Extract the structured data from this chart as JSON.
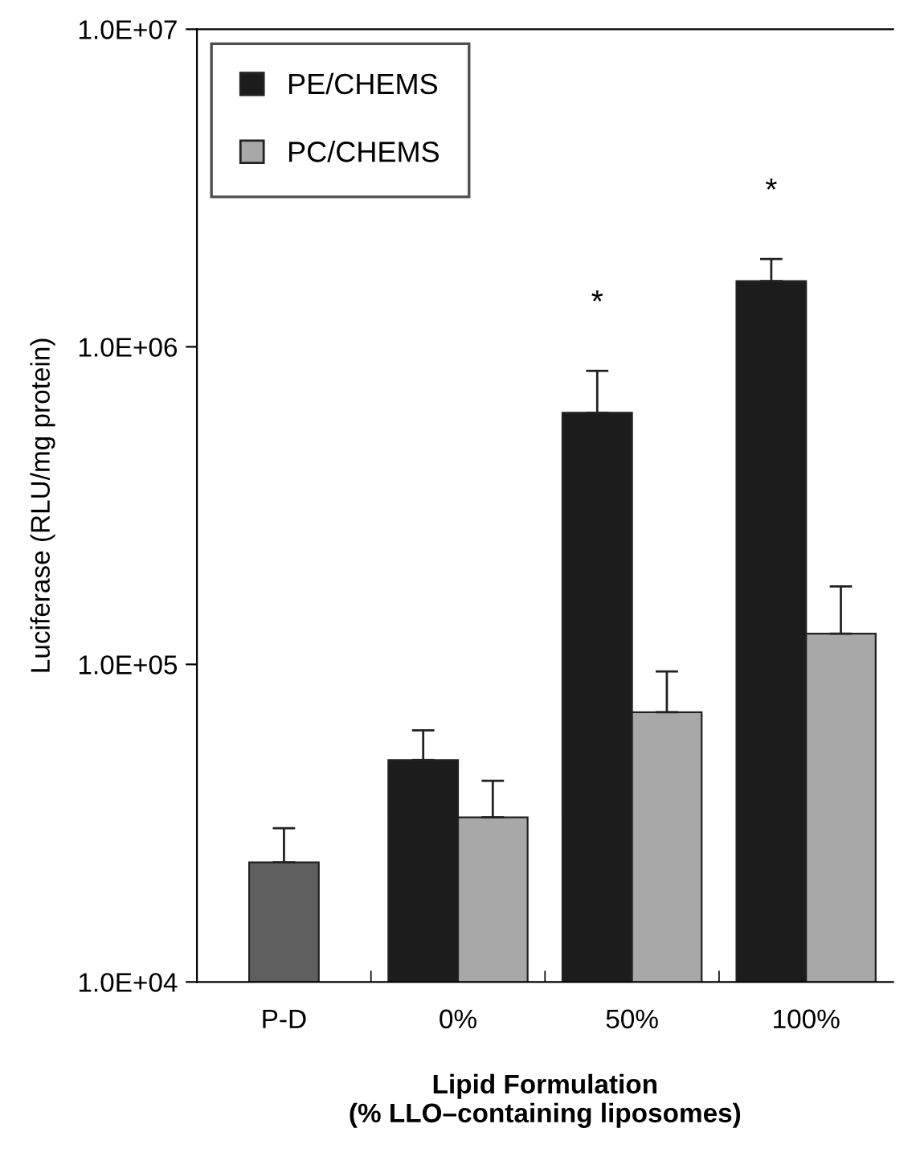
{
  "chart_data": {
    "type": "bar",
    "xlabel": "Lipid Formulation\n(% LLO–containing liposomes)",
    "ylabel": "Luciferase (RLU/mg protein)",
    "categories": [
      "P-D",
      "0%",
      "50%",
      "100%"
    ],
    "series": [
      {
        "name": "PE/CHEMS",
        "color": "#1c1c1c",
        "values": [
          null,
          50000,
          620000,
          1610000
        ],
        "errors": [
          null,
          [
            50000,
            62000
          ],
          [
            620000,
            840000
          ],
          [
            1610000,
            1890000
          ]
        ]
      },
      {
        "name": "PC/CHEMS",
        "color": "#a8a8a8",
        "values": [
          null,
          33000,
          70700,
          125000
        ],
        "errors": [
          null,
          [
            33000,
            43000
          ],
          [
            70700,
            95000
          ],
          [
            125000,
            176000
          ]
        ]
      },
      {
        "color": "#5f5f5f",
        "values": [
          23800,
          null,
          null,
          null
        ],
        "errors": [
          [
            23800,
            30500
          ],
          null,
          null,
          null
        ]
      }
    ],
    "log": "y",
    "ylim": [
      10000,
      10000000
    ],
    "yticks": [
      {
        "value": 10000,
        "label": "1.0E+04"
      },
      {
        "value": 100000,
        "label": "1.0E+05"
      },
      {
        "value": 1000000,
        "label": "1.0E+06"
      },
      {
        "value": 10000000,
        "label": "1.0E+07"
      }
    ],
    "grid": false,
    "legend": "top left",
    "annotations": [
      "*",
      "*"
    ]
  }
}
